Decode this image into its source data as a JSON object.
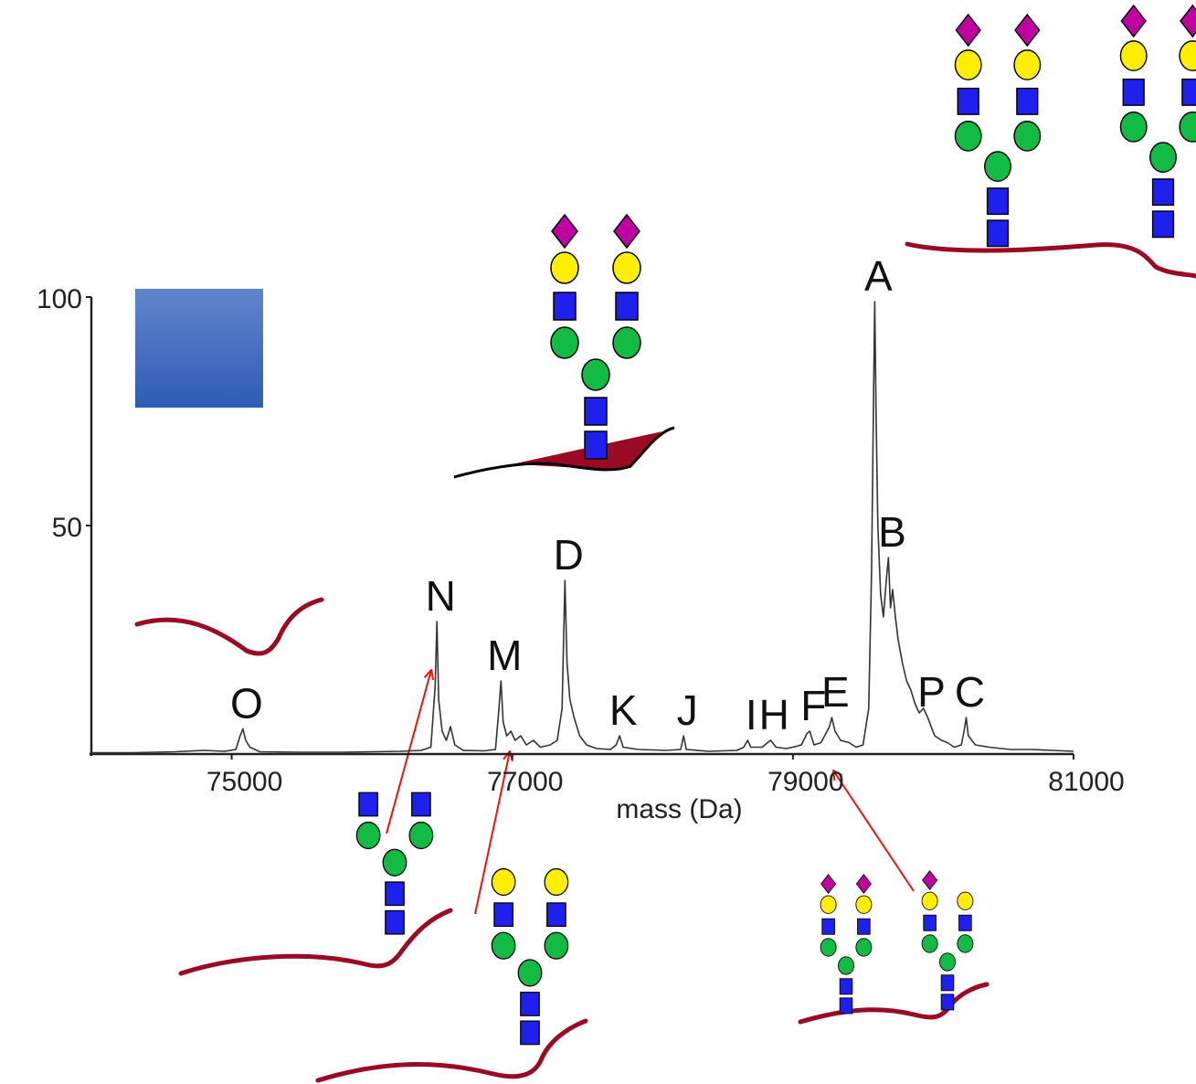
{
  "chart_data": {
    "type": "line",
    "x_label": "mass (Da)",
    "xlim": [
      74000,
      81000
    ],
    "xticks": [
      75000,
      77000,
      79000,
      81000
    ],
    "ylim": [
      0,
      100
    ],
    "yticks": [
      50,
      100
    ],
    "x": [
      74000,
      74300,
      74600,
      74800,
      74950,
      75030,
      75060,
      75080,
      75100,
      75130,
      75200,
      75500,
      75800,
      76000,
      76200,
      76350,
      76420,
      76450,
      76463,
      76475,
      76500,
      76530,
      76560,
      76590,
      76650,
      76800,
      76880,
      76905,
      76919,
      76935,
      76960,
      76990,
      77020,
      77060,
      77100,
      77150,
      77200,
      77270,
      77320,
      77355,
      77375,
      77390,
      77410,
      77440,
      77480,
      77530,
      77600,
      77700,
      77740,
      77765,
      77790,
      77900,
      78100,
      78200,
      78221,
      78240,
      78400,
      78600,
      78650,
      78677,
      78700,
      78780,
      78840,
      78880,
      78950,
      79000,
      79060,
      79100,
      79120,
      79150,
      79200,
      79260,
      79277,
      79300,
      79340,
      79400,
      79450,
      79500,
      79540,
      79560,
      79575,
      79583,
      79592,
      79605,
      79625,
      79645,
      79665,
      79681,
      79695,
      79710,
      79730,
      79750,
      79780,
      79810,
      79840,
      79870,
      79900,
      79930,
      79961,
      79985,
      80010,
      80060,
      80100,
      80150,
      80200,
      80220,
      80235,
      80250,
      80300,
      80400,
      80550,
      80700,
      80850,
      81000
    ],
    "series": [
      {
        "color": "#333333",
        "values": [
          0.3,
          0.3,
          0.5,
          0.8,
          0.6,
          1,
          4,
          5.5,
          3,
          1.5,
          0.5,
          0.4,
          0.4,
          0.5,
          0.6,
          0.8,
          1.5,
          15,
          29,
          12,
          5,
          3,
          6,
          2,
          0.8,
          0.7,
          1,
          10,
          16,
          7,
          4,
          5,
          3,
          4,
          2,
          3,
          1.5,
          2,
          3,
          10,
          38,
          20,
          12,
          8,
          4,
          2,
          1.2,
          1,
          2,
          4,
          1.5,
          1,
          0.8,
          1,
          4,
          1,
          0.6,
          0.8,
          1.5,
          3,
          1.5,
          1.5,
          3,
          1.5,
          1.2,
          1.5,
          2,
          4.5,
          5,
          2,
          2.5,
          6,
          8,
          5,
          3,
          2.5,
          1.5,
          2,
          10,
          40,
          80,
          99,
          75,
          50,
          35,
          30,
          38,
          43,
          32,
          36,
          30,
          25,
          20,
          16,
          14,
          11,
          9,
          10,
          8,
          6,
          4,
          3,
          2.5,
          1.5,
          2,
          5,
          8,
          4,
          2,
          1.5,
          1,
          1,
          0.8,
          0.6
        ]
      }
    ],
    "annotations": [
      {
        "text": "O",
        "x": 75080,
        "y": 5.5
      },
      {
        "text": "N",
        "x": 76463,
        "y": 29
      },
      {
        "text": "M",
        "x": 76919,
        "y": 16
      },
      {
        "text": "D",
        "x": 77375,
        "y": 38
      },
      {
        "text": "K",
        "x": 77765,
        "y": 4
      },
      {
        "text": "J",
        "x": 78221,
        "y": 4
      },
      {
        "text": "I",
        "x": 78677,
        "y": 3
      },
      {
        "text": "H",
        "x": 78840,
        "y": 3
      },
      {
        "text": "F",
        "x": 79120,
        "y": 5
      },
      {
        "text": "E",
        "x": 79277,
        "y": 8
      },
      {
        "text": "A",
        "x": 79583,
        "y": 99
      },
      {
        "text": "B",
        "x": 79681,
        "y": 43
      },
      {
        "text": "P",
        "x": 79961,
        "y": 8
      },
      {
        "text": "C",
        "x": 80235,
        "y": 8
      }
    ]
  }
}
